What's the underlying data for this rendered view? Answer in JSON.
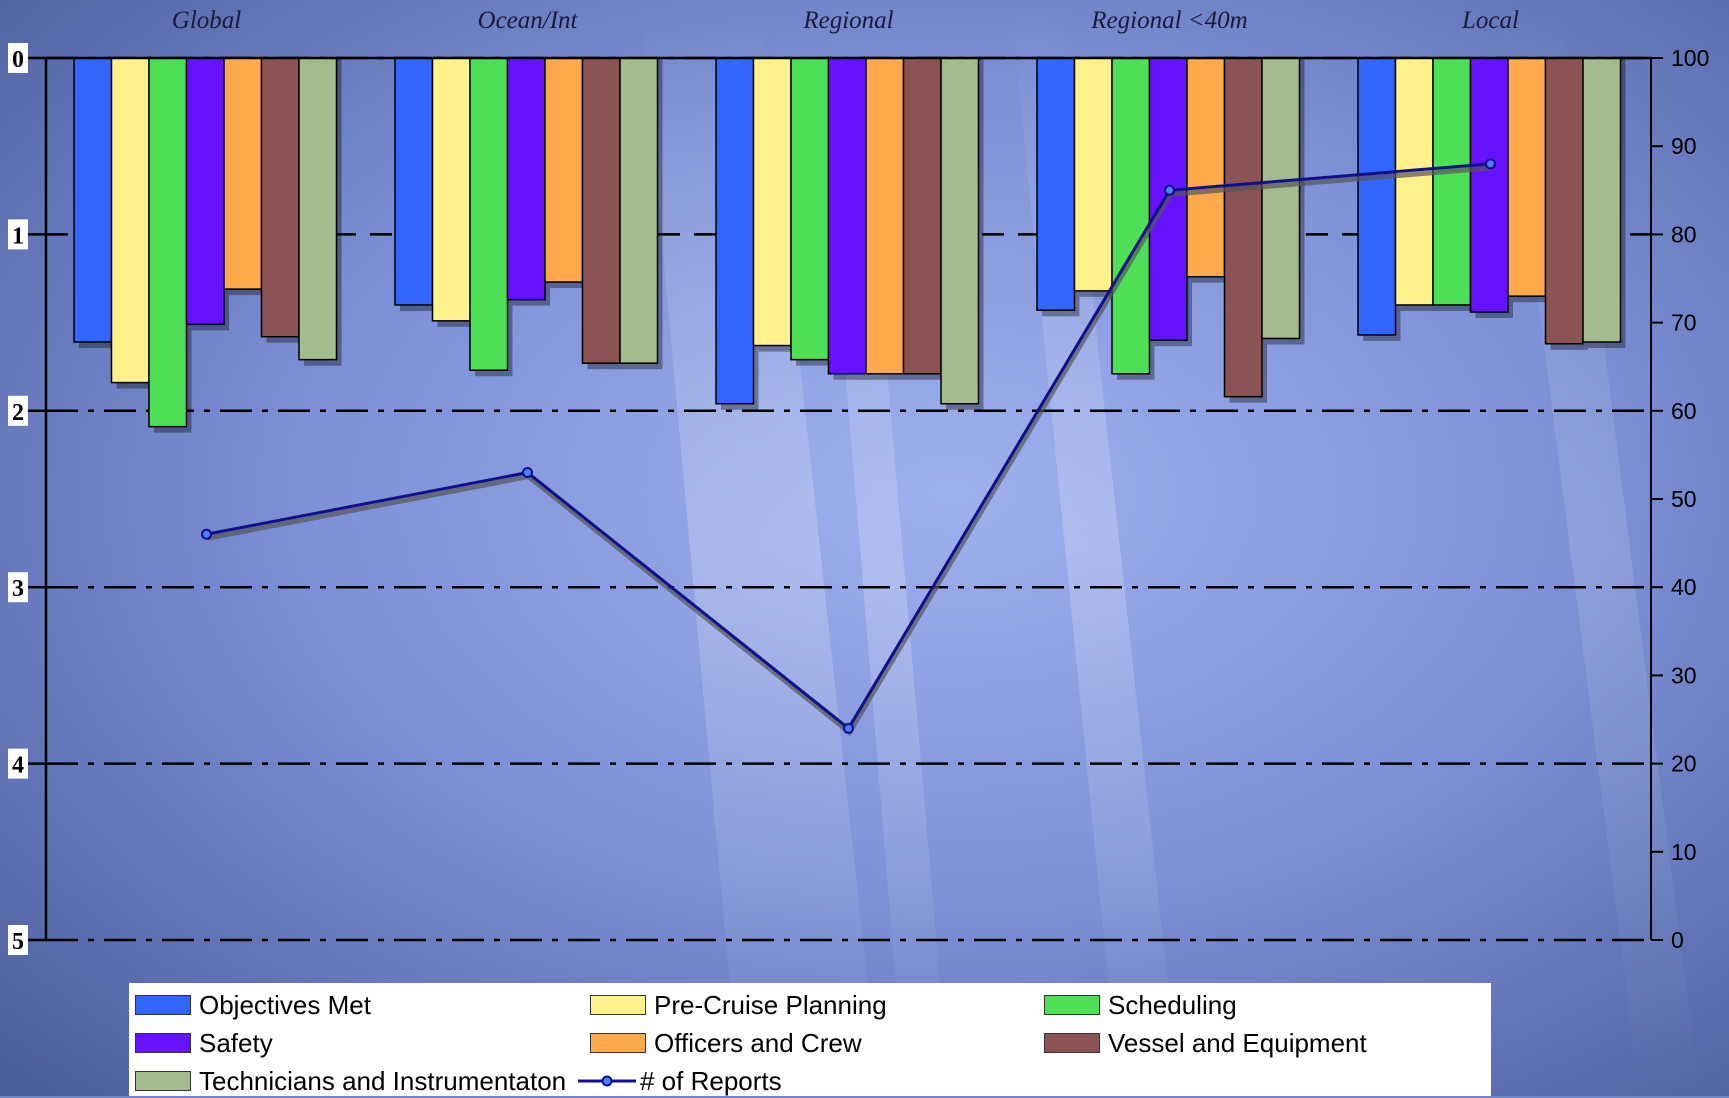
{
  "chart_data": {
    "type": "bar",
    "categories": [
      "Global",
      "Ocean/Int",
      "Regional",
      "Regional <40m",
      "Local"
    ],
    "left_axis": {
      "ylim": [
        0,
        5
      ],
      "inverted": true,
      "ticks": [
        "0",
        "1",
        "2",
        "3",
        "4",
        "5"
      ]
    },
    "right_axis": {
      "ylim": [
        0,
        100
      ],
      "ticks": [
        "0",
        "10",
        "20",
        "30",
        "40",
        "50",
        "60",
        "70",
        "80",
        "90",
        "100"
      ]
    },
    "series": [
      {
        "name": "Objectives Met",
        "color": "#3366ff",
        "values": [
          1.61,
          1.4,
          1.96,
          1.43,
          1.57
        ]
      },
      {
        "name": "Pre-Cruise Planning",
        "color": "#fff28a",
        "values": [
          1.84,
          1.49,
          1.63,
          1.32,
          1.4
        ]
      },
      {
        "name": "Scheduling",
        "color": "#4ddf55",
        "values": [
          2.09,
          1.77,
          1.71,
          1.79,
          1.4
        ]
      },
      {
        "name": "Safety",
        "color": "#6611ff",
        "values": [
          1.51,
          1.37,
          1.79,
          1.6,
          1.44
        ]
      },
      {
        "name": "Officers and Crew",
        "color": "#ffa94d",
        "values": [
          1.31,
          1.27,
          1.79,
          1.24,
          1.35
        ]
      },
      {
        "name": "Vessel and Equipment",
        "color": "#8b5353",
        "values": [
          1.58,
          1.73,
          1.79,
          1.92,
          1.62
        ]
      },
      {
        "name": "Technicians and Instrumentaton",
        "color": "#a3bb8d",
        "values": [
          1.71,
          1.73,
          1.96,
          1.59,
          1.61
        ]
      },
      {
        "name": "# of Reports",
        "type": "line",
        "axis": "right",
        "color": "#10108a",
        "values": [
          46,
          53,
          24,
          85,
          88
        ]
      }
    ],
    "grid": true,
    "legend_position": "bottom"
  }
}
